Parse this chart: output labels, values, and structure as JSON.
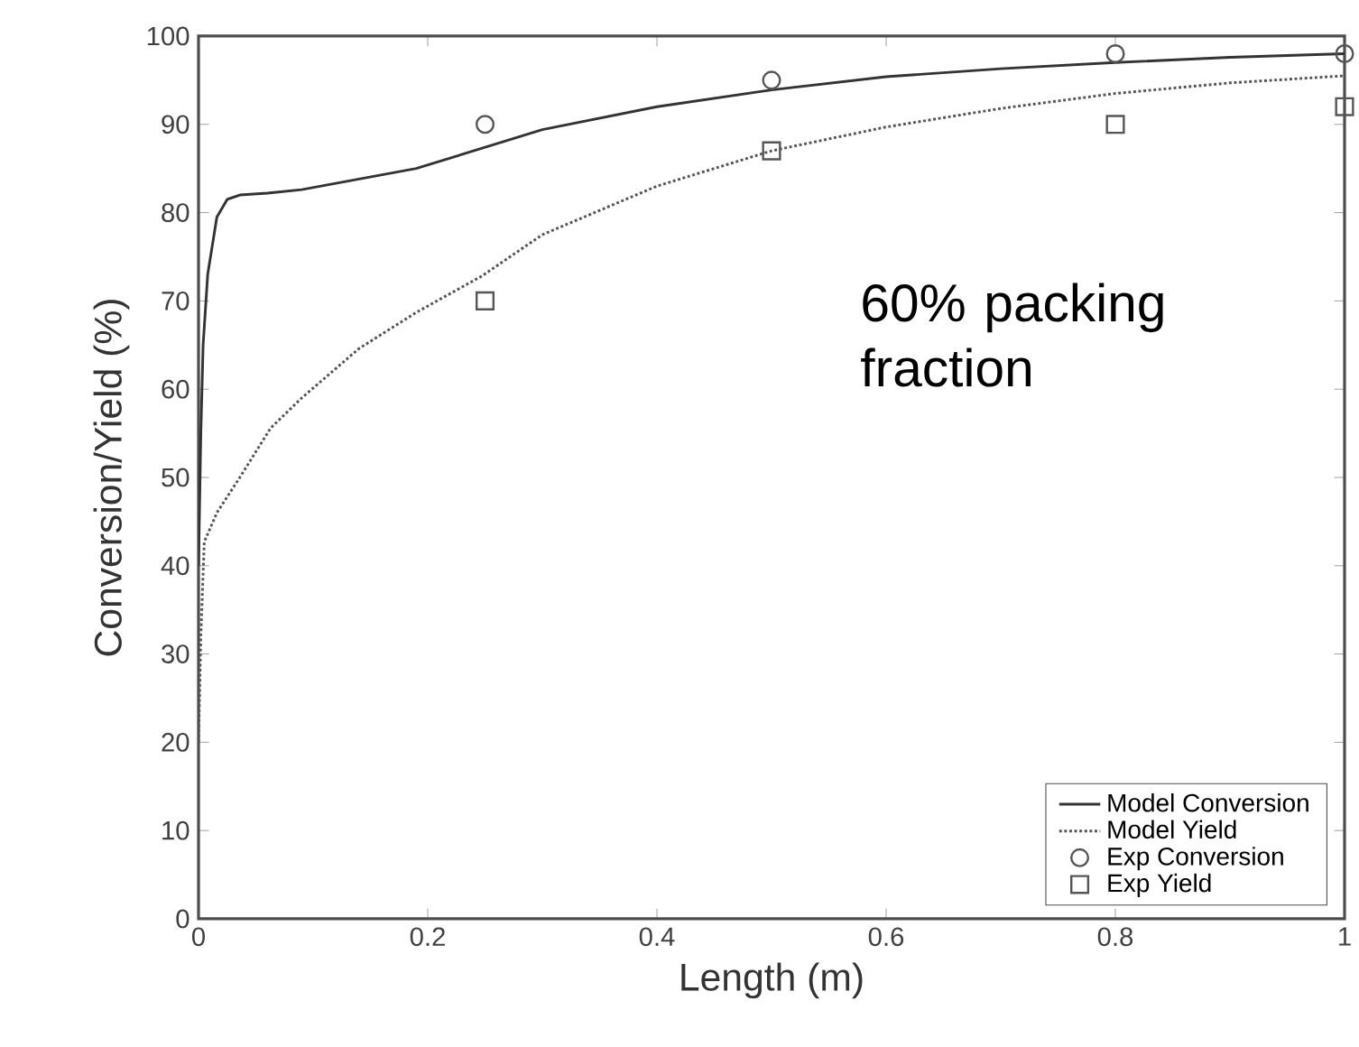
{
  "chart_data": {
    "type": "line",
    "xlabel": "Length (m)",
    "ylabel": "Conversion/Yield (%)",
    "xlim": [
      0,
      1
    ],
    "ylim": [
      0,
      100
    ],
    "xticks": [
      0,
      0.2,
      0.4,
      0.6,
      0.8,
      1
    ],
    "yticks": [
      0,
      10,
      20,
      30,
      40,
      50,
      60,
      70,
      80,
      90,
      100
    ],
    "grid": false,
    "legend": "bottom right",
    "annotations": [
      "60% packing fraction"
    ],
    "series": [
      {
        "name": "Model Conversion",
        "line_style": "solid",
        "marker": "none",
        "color": "#333333",
        "x": [
          0,
          0.002,
          0.004,
          0.008,
          0.016,
          0.025,
          0.036,
          0.06,
          0.09,
          0.19,
          0.3,
          0.4,
          0.5,
          0.6,
          0.7,
          0.8,
          0.9,
          1
        ],
        "values": [
          40,
          55,
          65,
          73,
          79.5,
          81.5,
          82,
          82.2,
          82.6,
          85,
          89.4,
          92,
          93.9,
          95.4,
          96.3,
          97,
          97.6,
          98
        ]
      },
      {
        "name": "Model Yield",
        "line_style": "dotted",
        "marker": "none",
        "color": "#555555",
        "x": [
          0,
          0.002,
          0.005,
          0.016,
          0.036,
          0.063,
          0.09,
          0.14,
          0.19,
          0.247,
          0.3,
          0.4,
          0.5,
          0.6,
          0.7,
          0.8,
          0.9,
          1
        ],
        "values": [
          20,
          32,
          42.7,
          46,
          50,
          55.6,
          59,
          64.6,
          68.7,
          72.8,
          77.5,
          83,
          87,
          89.7,
          91.8,
          93.5,
          94.7,
          95.5
        ]
      },
      {
        "name": "Exp Conversion",
        "type": "scatter",
        "marker": "circle",
        "color": "#555555",
        "x": [
          0.25,
          0.5,
          0.8,
          1
        ],
        "values": [
          90,
          95,
          98,
          98
        ]
      },
      {
        "name": "Exp Yield",
        "type": "scatter",
        "marker": "square",
        "color": "#555555",
        "x": [
          0.25,
          0.5,
          0.8,
          1
        ],
        "values": [
          70,
          87,
          90,
          92
        ]
      }
    ]
  }
}
